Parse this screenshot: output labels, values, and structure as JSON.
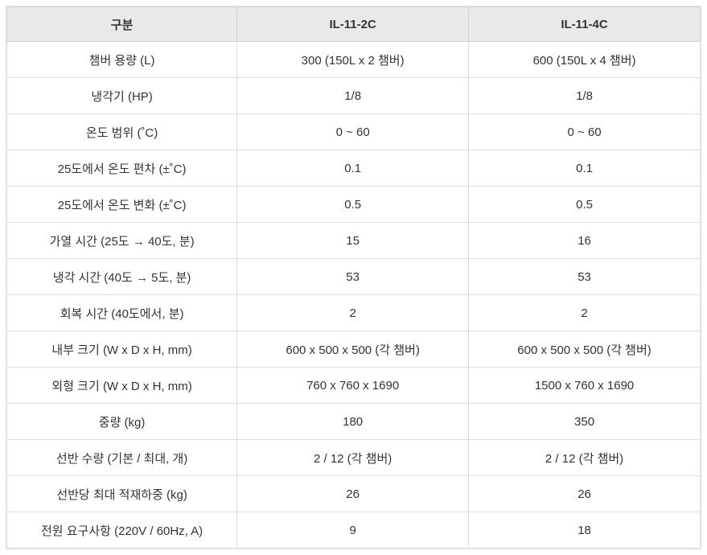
{
  "chart_data": {
    "type": "table",
    "title": "",
    "columns": [
      "구분",
      "IL-11-2C",
      "IL-11-4C"
    ],
    "rows": [
      {
        "label": "챔버 용량 (L)",
        "values": [
          "300 (150L x 2 챔버)",
          "600 (150L x 4 챔버)"
        ]
      },
      {
        "label": "냉각기 (HP)",
        "values": [
          "1/8",
          "1/8"
        ]
      },
      {
        "label": "온도 범위 (˚C)",
        "values": [
          "0 ~ 60",
          "0 ~ 60"
        ]
      },
      {
        "label": "25도에서 온도 편차 (±˚C)",
        "values": [
          "0.1",
          "0.1"
        ]
      },
      {
        "label": "25도에서 온도 변화 (±˚C)",
        "values": [
          "0.5",
          "0.5"
        ]
      },
      {
        "label": "가열 시간 (25도 → 40도, 분)",
        "values": [
          "15",
          "16"
        ]
      },
      {
        "label": "냉각 시간 (40도 → 5도, 분)",
        "values": [
          "53",
          "53"
        ]
      },
      {
        "label": "회복 시간 (40도에서, 분)",
        "values": [
          "2",
          "2"
        ]
      },
      {
        "label": "내부 크기 (W x D x H, mm)",
        "values": [
          "600 x 500 x 500 (각 챔버)",
          "600 x 500 x 500 (각 챔버)"
        ]
      },
      {
        "label": "외형 크기 (W x D x H, mm)",
        "values": [
          "760 x 760 x 1690",
          "1500 x 760 x 1690"
        ]
      },
      {
        "label": "중량 (kg)",
        "values": [
          "180",
          "350"
        ]
      },
      {
        "label": "선반 수량 (기본 / 최대, 개)",
        "values": [
          "2 / 12 (각 챔버)",
          "2 / 12 (각 챔버)"
        ]
      },
      {
        "label": "선반당 최대 적재하중 (kg)",
        "values": [
          "26",
          "26"
        ]
      },
      {
        "label": "전원 요구사항 (220V / 60Hz, A)",
        "values": [
          "9",
          "18"
        ]
      }
    ],
    "layout": {
      "header_bg": "#e9e9e9",
      "outer_border": "#c9c9c9",
      "inner_border": "#dedede",
      "text_color": "#333333",
      "alignment": "center"
    }
  }
}
